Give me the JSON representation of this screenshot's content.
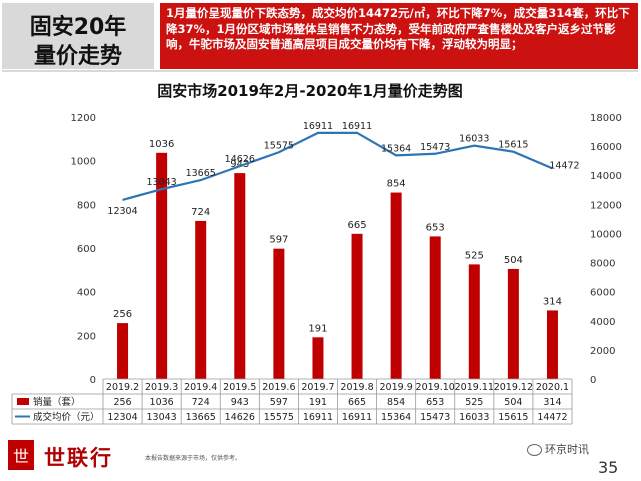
{
  "header": {
    "title_line1": "固安20年",
    "title_line2": "量价走势",
    "summary": "1月量价呈现量价下跌态势，成交均价14472元/㎡，环比下降7%，成交量314套，环比下降37%，1月份区域市场整体呈销售不力态势，受年前政府严查售楼处及客户返乡过节影响，牛驼市场及固安普通高层项目成交量价均有下降，浮动较为明显；"
  },
  "chart_data": {
    "type": "bar",
    "title": "固安市场2019年2月-2020年1月量价走势图",
    "categories": [
      "2019.2",
      "2019.3",
      "2019.4",
      "2019.5",
      "2019.6",
      "2019.7",
      "2019.8",
      "2019.9",
      "2019.10",
      "2019.11",
      "2019.12",
      "2020.1"
    ],
    "series": [
      {
        "name": "销量（套）",
        "type": "bar",
        "axis": "left",
        "color": "#c00000",
        "values": [
          256,
          1036,
          724,
          943,
          597,
          191,
          665,
          854,
          653,
          525,
          504,
          314
        ]
      },
      {
        "name": "成交均价（元）",
        "type": "line",
        "axis": "right",
        "color": "#2e75b6",
        "values": [
          12304,
          13043,
          13665,
          14626,
          15575,
          16911,
          16911,
          15364,
          15473,
          16033,
          15615,
          14472
        ]
      }
    ],
    "y_left": {
      "min": 0,
      "max": 1200,
      "ticks": [
        0,
        200,
        400,
        600,
        800,
        1000,
        1200
      ]
    },
    "y_right": {
      "min": 0,
      "max": 18000,
      "ticks": [
        0,
        2000,
        4000,
        6000,
        8000,
        10000,
        12000,
        14000,
        16000,
        18000
      ]
    },
    "grid": false,
    "legend": "table-below"
  },
  "footer": {
    "logo_char": "世",
    "brand": "世联行",
    "note": "本报告数据来源于市场，仅供参考。",
    "wechat": "环京时讯",
    "page": "35"
  }
}
